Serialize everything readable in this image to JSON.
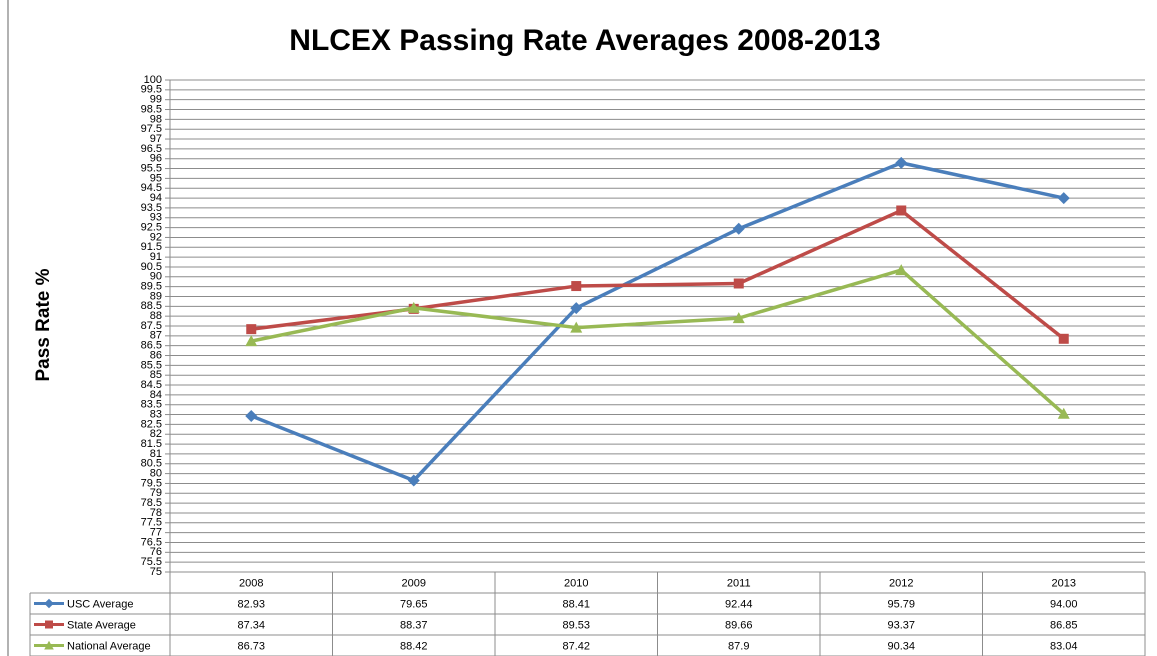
{
  "chart_data": {
    "type": "line",
    "title": "NLCEX Passing Rate Averages 2008-2013",
    "y_label": "Pass Rate %",
    "categories": [
      "2008",
      "2009",
      "2010",
      "2011",
      "2012",
      "2013"
    ],
    "series": [
      {
        "name": "USC Average",
        "color": "#4a7ebb",
        "marker": "diamond",
        "values": [
          82.93,
          79.65,
          88.41,
          92.44,
          95.79,
          94.0
        ],
        "value_labels": [
          "82.93",
          "79.65",
          "88.41",
          "92.44",
          "95.79",
          "94.00"
        ]
      },
      {
        "name": "State Average",
        "color": "#be4b48",
        "marker": "square",
        "values": [
          87.34,
          88.37,
          89.53,
          89.66,
          93.37,
          86.85
        ],
        "value_labels": [
          "87.34",
          "88.37",
          "89.53",
          "89.66",
          "93.37",
          "86.85"
        ]
      },
      {
        "name": "National Average",
        "color": "#98b954",
        "marker": "triangle",
        "values": [
          86.73,
          88.42,
          87.42,
          87.9,
          90.34,
          83.04
        ],
        "value_labels": [
          "86.73",
          "88.42",
          "87.42",
          "87.9",
          "90.34",
          "83.04"
        ]
      }
    ],
    "ylim": [
      75,
      100
    ],
    "yticks": [
      75,
      75.5,
      76,
      76.5,
      77,
      77.5,
      78,
      78.5,
      79,
      79.5,
      80,
      80.5,
      81,
      81.5,
      82,
      82.5,
      83,
      83.5,
      84,
      84.5,
      85,
      85.5,
      86,
      86.5,
      87,
      87.5,
      88,
      88.5,
      89,
      89.5,
      90,
      90.5,
      91,
      91.5,
      92,
      92.5,
      93,
      93.5,
      94,
      94.5,
      95,
      95.5,
      96,
      96.5,
      97,
      97.5,
      98,
      98.5,
      99,
      99.5,
      100
    ],
    "grid": true
  }
}
